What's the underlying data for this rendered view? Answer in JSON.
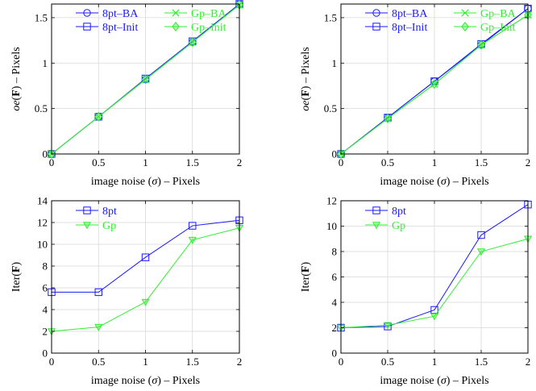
{
  "colors": {
    "blue": "#1a1aff",
    "green": "#33ee33",
    "grid": "#d9d9d9"
  },
  "chart_data": [
    {
      "type": "line",
      "xlabel_pre": "image noise (",
      "xlabel_sym": "σ",
      "xlabel_post": ") – Pixels",
      "ylabel_it": "oe",
      "ylabel_b": "F",
      "ylabel_post": " – Pixels",
      "xlim": [
        0,
        2
      ],
      "ylim": [
        0,
        1.65
      ],
      "xticks": [
        0,
        0.5,
        1,
        1.5,
        2
      ],
      "xtick_labels": [
        "0",
        "0.5",
        "1",
        "1.5",
        "2"
      ],
      "yticks": [
        0,
        0.5,
        1,
        1.5
      ],
      "ytick_labels": [
        "0",
        "0.5",
        "1",
        "1.5"
      ],
      "grid": true,
      "legend_position": "top-center",
      "x": [
        0,
        0.5,
        1,
        1.5,
        2
      ],
      "series": [
        {
          "name": "8pt–BA",
          "marker": "circle",
          "color": "blue",
          "values": [
            0,
            0.41,
            0.82,
            1.23,
            1.65
          ]
        },
        {
          "name": "8pt–Init",
          "marker": "square",
          "color": "blue",
          "values": [
            0,
            0.41,
            0.83,
            1.24,
            1.65
          ]
        },
        {
          "name": "Gp–BA",
          "marker": "x",
          "color": "green",
          "values": [
            0,
            0.41,
            0.82,
            1.23,
            1.64
          ]
        },
        {
          "name": "Gp–Init",
          "marker": "diamond",
          "color": "green",
          "values": [
            0,
            0.41,
            0.82,
            1.23,
            1.64
          ]
        }
      ]
    },
    {
      "type": "line",
      "xlabel_pre": "image noise (",
      "xlabel_sym": "σ",
      "xlabel_post": ") – Pixels",
      "ylabel_it": "oe",
      "ylabel_b": "F",
      "ylabel_post": " – Pixels",
      "xlim": [
        0,
        2
      ],
      "ylim": [
        0,
        1.65
      ],
      "xticks": [
        0,
        0.5,
        1,
        1.5,
        2
      ],
      "xtick_labels": [
        "0",
        "0.5",
        "1",
        "1.5",
        "2"
      ],
      "yticks": [
        0,
        0.5,
        1,
        1.5
      ],
      "ytick_labels": [
        "0",
        "0.5",
        "1",
        "1.5"
      ],
      "grid": true,
      "legend_position": "top-center",
      "x": [
        0,
        0.5,
        1,
        1.5,
        2
      ],
      "series": [
        {
          "name": "8pt–BA",
          "marker": "circle",
          "color": "blue",
          "values": [
            0,
            0.4,
            0.8,
            1.2,
            1.6
          ]
        },
        {
          "name": "8pt–Init",
          "marker": "square",
          "color": "blue",
          "values": [
            0,
            0.4,
            0.8,
            1.21,
            1.6
          ]
        },
        {
          "name": "Gp–BA",
          "marker": "x",
          "color": "green",
          "values": [
            0,
            0.39,
            0.77,
            1.2,
            1.53
          ]
        },
        {
          "name": "Gp–Init",
          "marker": "diamond",
          "color": "green",
          "values": [
            0,
            0.39,
            0.77,
            1.2,
            1.53
          ]
        }
      ]
    },
    {
      "type": "line",
      "xlabel_pre": "image noise (",
      "xlabel_sym": "σ",
      "xlabel_post": ") – Pixels",
      "ylabel_pre": "Iter(",
      "ylabel_b": "F",
      "ylabel_post2": ")",
      "xlim": [
        0,
        2
      ],
      "ylim": [
        0,
        14
      ],
      "xticks": [
        0,
        0.5,
        1,
        1.5,
        2
      ],
      "xtick_labels": [
        "0",
        "0.5",
        "1",
        "1.5",
        "2"
      ],
      "yticks": [
        0,
        2,
        4,
        6,
        8,
        10,
        12,
        14
      ],
      "ytick_labels": [
        "0",
        "2",
        "4",
        "6",
        "8",
        "10",
        "12",
        "14"
      ],
      "grid": true,
      "legend_position": "top-center",
      "x": [
        0,
        0.5,
        1,
        1.5,
        2
      ],
      "series": [
        {
          "name": "8pt",
          "marker": "square",
          "color": "blue",
          "values": [
            5.6,
            5.6,
            8.8,
            11.7,
            12.2
          ]
        },
        {
          "name": "Gp",
          "marker": "triangle-down",
          "color": "green",
          "values": [
            2.0,
            2.4,
            4.7,
            10.4,
            11.5
          ]
        }
      ]
    },
    {
      "type": "line",
      "xlabel_pre": "image noise (",
      "xlabel_sym": "σ",
      "xlabel_post": ") – Pixels",
      "ylabel_pre": "Iter(",
      "ylabel_b": "F",
      "ylabel_post2": ")",
      "xlim": [
        0,
        2
      ],
      "ylim": [
        0,
        12
      ],
      "xticks": [
        0,
        0.5,
        1,
        1.5,
        2
      ],
      "xtick_labels": [
        "0",
        "0.5",
        "1",
        "1.5",
        "2"
      ],
      "yticks": [
        0,
        2,
        4,
        6,
        8,
        10,
        12
      ],
      "ytick_labels": [
        "0",
        "2",
        "4",
        "6",
        "8",
        "10",
        "12"
      ],
      "grid": true,
      "legend_position": "top-center",
      "x": [
        0,
        0.5,
        1,
        1.5,
        2
      ],
      "series": [
        {
          "name": "8pt",
          "marker": "square",
          "color": "blue",
          "values": [
            2.0,
            2.1,
            3.4,
            9.3,
            11.7
          ]
        },
        {
          "name": "Gp",
          "marker": "triangle-down",
          "color": "green",
          "values": [
            2.0,
            2.2,
            2.9,
            8.0,
            9.0
          ]
        }
      ]
    }
  ]
}
